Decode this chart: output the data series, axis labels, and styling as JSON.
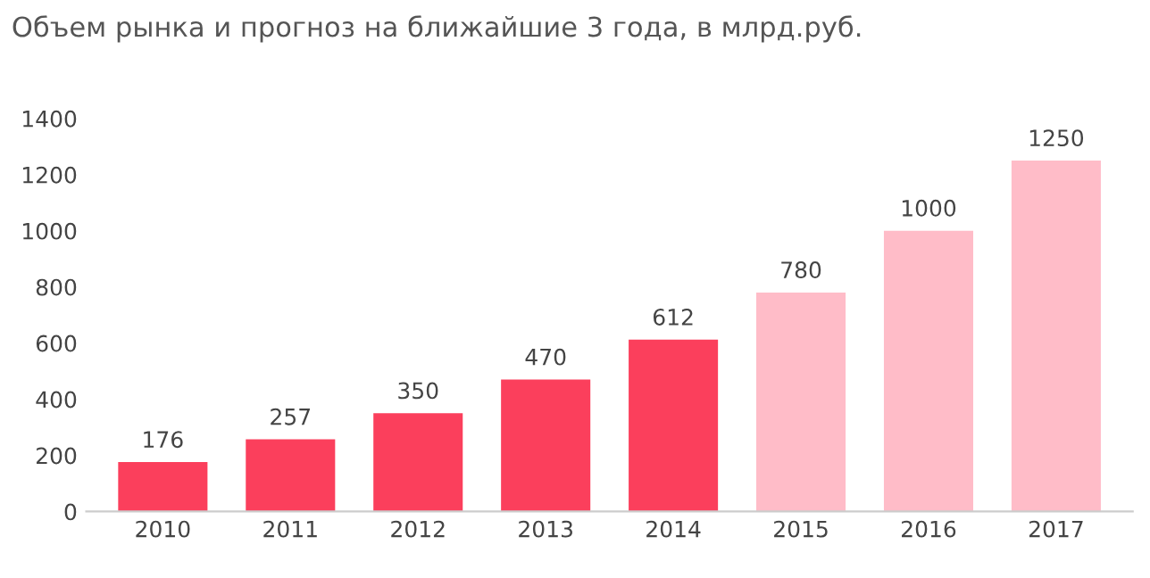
{
  "chart_data": {
    "type": "bar",
    "title": "Объем рынка и прогноз на ближайшие 3 года, в млрд.руб.",
    "categories": [
      "2010",
      "2011",
      "2012",
      "2013",
      "2014",
      "2015",
      "2016",
      "2017"
    ],
    "values": [
      176,
      257,
      350,
      470,
      612,
      780,
      1000,
      1250
    ],
    "colors": [
      "#fb3f5c",
      "#fb3f5c",
      "#fb3f5c",
      "#fb3f5c",
      "#fb3f5c",
      "#ffbcc8",
      "#ffbcc8",
      "#ffbcc8"
    ],
    "ylim": [
      0,
      1400
    ],
    "yticks": [
      0,
      200,
      400,
      600,
      800,
      1000,
      1200,
      1400
    ],
    "grid": false,
    "data_labels": true
  }
}
